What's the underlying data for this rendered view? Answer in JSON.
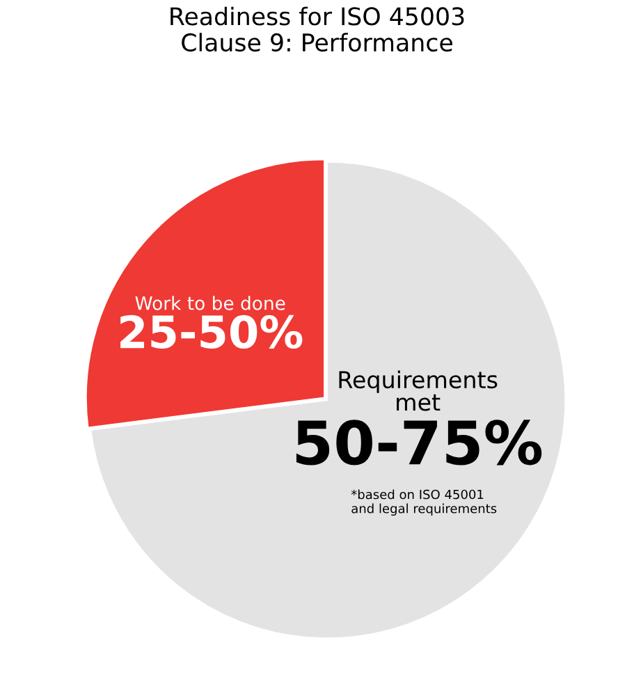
{
  "chart_data": {
    "type": "pie",
    "title": "Readiness for ISO 45003\nClause 9: Performance",
    "categories": [
      "Work to be done",
      "Requirements\nmet"
    ],
    "values": [
      27,
      73
    ],
    "colors": [
      "#ef3934",
      "#e3e3e3"
    ],
    "annotations": [
      "25-50%",
      "50-75%",
      "*based on ISO 45001\nand legal requirements"
    ]
  }
}
